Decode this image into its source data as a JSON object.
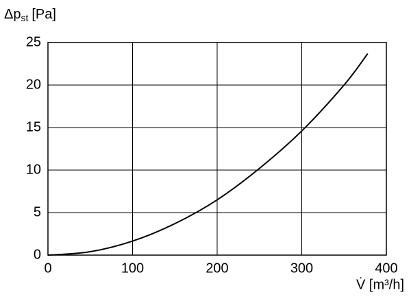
{
  "chart_data": {
    "type": "line",
    "y_label": {
      "symbol": "Δp",
      "subscript": "st",
      "unit": "[Pa]"
    },
    "x_label": "V̇ [m³/h]",
    "x": [
      0,
      50,
      100,
      150,
      200,
      250,
      300,
      350,
      378
    ],
    "series": [
      {
        "color": "#000000",
        "values": [
          0,
          0.4,
          1.65,
          3.7,
          6.5,
          10.2,
          14.6,
          20.0,
          23.7
        ]
      }
    ],
    "xlim": [
      0,
      400
    ],
    "xticks": [
      0,
      100,
      200,
      300,
      400
    ],
    "ylim": [
      0,
      25
    ],
    "yticks": [
      0,
      5,
      10,
      15,
      20,
      25
    ],
    "grid": true
  }
}
